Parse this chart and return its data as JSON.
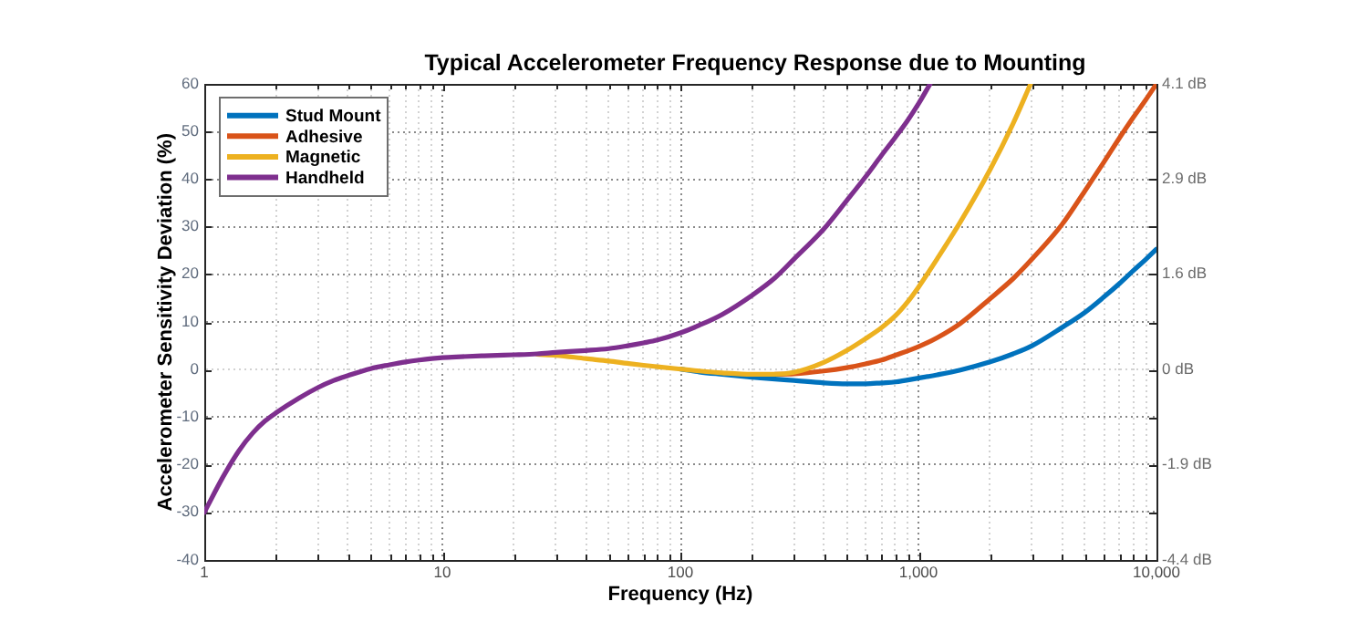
{
  "chart_data": {
    "type": "line",
    "title": "Typical Accelerometer Frequency Response due to Mounting",
    "xlabel": "Frequency (Hz)",
    "ylabel": "Accelerometer Sensitivity Deviation (%)",
    "series": [
      {
        "name": "Stud Mount",
        "color": "#0072bd",
        "x": [
          100,
          120,
          150,
          200,
          250,
          300,
          400,
          500,
          600,
          700,
          800,
          1000,
          1200,
          1500,
          2000,
          2500,
          3000,
          4000,
          5000,
          6000,
          7000,
          8000,
          9000,
          10000
        ],
        "values": [
          0.1,
          -0.5,
          -1,
          -1.6,
          -2,
          -2.3,
          -2.8,
          -3,
          -3,
          -2.8,
          -2.6,
          -1.8,
          -1.1,
          -0.1,
          1.6,
          3.3,
          5,
          8.8,
          12,
          15.2,
          18.1,
          20.8,
          23.1,
          25.3
        ]
      },
      {
        "name": "Adhesive",
        "color": "#d95319",
        "x": [
          250,
          300,
          400,
          500,
          600,
          700,
          800,
          1000,
          1200,
          1500,
          2000,
          2500,
          3000,
          4000,
          5000,
          6000,
          7000,
          8000,
          9000,
          10000
        ],
        "values": [
          -1,
          -0.9,
          -0.3,
          0.4,
          1.2,
          2,
          3,
          4.8,
          6.7,
          9.7,
          14.9,
          19.1,
          23.2,
          30.4,
          37.5,
          43.5,
          48.7,
          53,
          56.6,
          60
        ]
      },
      {
        "name": "Magnetic",
        "color": "#edb120",
        "x": [
          25,
          30,
          40,
          50,
          60,
          70,
          80,
          100,
          120,
          150,
          200,
          250,
          300,
          400,
          500,
          600,
          700,
          800,
          900,
          1000,
          1200,
          1500,
          2000,
          2500,
          2960
        ],
        "values": [
          3.2,
          3,
          2.3,
          1.8,
          1.3,
          0.9,
          0.6,
          0.1,
          -0.3,
          -0.7,
          -1,
          -1,
          -0.6,
          1.5,
          4,
          6.5,
          8.8,
          11.3,
          14.2,
          17.3,
          23.3,
          31,
          42,
          51.7,
          60
        ]
      },
      {
        "name": "Handheld",
        "color": "#7e2f8e",
        "x": [
          1,
          1.2,
          1.4,
          1.6,
          1.8,
          2,
          2.5,
          3,
          3.5,
          4,
          5,
          6,
          7,
          8,
          10,
          12,
          15,
          20,
          25,
          30,
          40,
          50,
          60,
          70,
          80,
          100,
          120,
          150,
          200,
          250,
          300,
          400,
          500,
          600,
          700,
          800,
          900,
          1000,
          1120
        ],
        "values": [
          -30,
          -22.5,
          -17,
          -13.3,
          -10.8,
          -9.1,
          -6,
          -3.8,
          -2.3,
          -1.3,
          0.2,
          1,
          1.6,
          2,
          2.5,
          2.7,
          2.9,
          3.1,
          3.3,
          3.6,
          4,
          4.4,
          5,
          5.6,
          6.2,
          7.7,
          9.3,
          11.6,
          15.6,
          19.3,
          23.2,
          29.5,
          35.5,
          40.5,
          45,
          48.8,
          52.3,
          55.8,
          60
        ]
      }
    ],
    "xlim": [
      1,
      10000
    ],
    "xticks": [
      1,
      {
        "value": 2,
        "label": null
      },
      {
        "value": 3,
        "label": null
      },
      {
        "value": 4,
        "label": null
      },
      {
        "value": 5,
        "label": null
      },
      {
        "value": 6,
        "label": null
      },
      {
        "value": 7,
        "label": null
      },
      {
        "value": 8,
        "label": null
      },
      {
        "value": 9,
        "label": null
      },
      10,
      {
        "value": 20,
        "label": null
      },
      {
        "value": 30,
        "label": null
      },
      {
        "value": 40,
        "label": null
      },
      {
        "value": 50,
        "label": null
      },
      {
        "value": 60,
        "label": null
      },
      {
        "value": 70,
        "label": null
      },
      {
        "value": 80,
        "label": null
      },
      {
        "value": 90,
        "label": null
      },
      100,
      {
        "value": 200,
        "label": null
      },
      {
        "value": 300,
        "label": null
      },
      {
        "value": 400,
        "label": null
      },
      {
        "value": 500,
        "label": null
      },
      {
        "value": 600,
        "label": null
      },
      {
        "value": 700,
        "label": null
      },
      {
        "value": 800,
        "label": null
      },
      {
        "value": 900,
        "label": null
      },
      {
        "value": 1000,
        "label": "1,000"
      },
      {
        "value": 2000,
        "label": null
      },
      {
        "value": 3000,
        "label": null
      },
      {
        "value": 4000,
        "label": null
      },
      {
        "value": 5000,
        "label": null
      },
      {
        "value": 6000,
        "label": null
      },
      {
        "value": 7000,
        "label": null
      },
      {
        "value": 8000,
        "label": null
      },
      {
        "value": 9000,
        "label": null
      },
      {
        "value": 10000,
        "label": "10,000"
      }
    ],
    "ylim": [
      -40,
      60
    ],
    "yticks": [
      -40,
      -30,
      -20,
      -10,
      0,
      10,
      20,
      30,
      40,
      50,
      60
    ],
    "y2_categories": [
      "4.1 dB",
      null,
      "2.9 dB",
      null,
      "1.6 dB",
      null,
      "0 dB",
      null,
      "-1.9 dB",
      null,
      "-4.4 dB"
    ],
    "log": "x",
    "grid": true,
    "legend": "top left",
    "marker": "none",
    "line_style": "solid"
  }
}
